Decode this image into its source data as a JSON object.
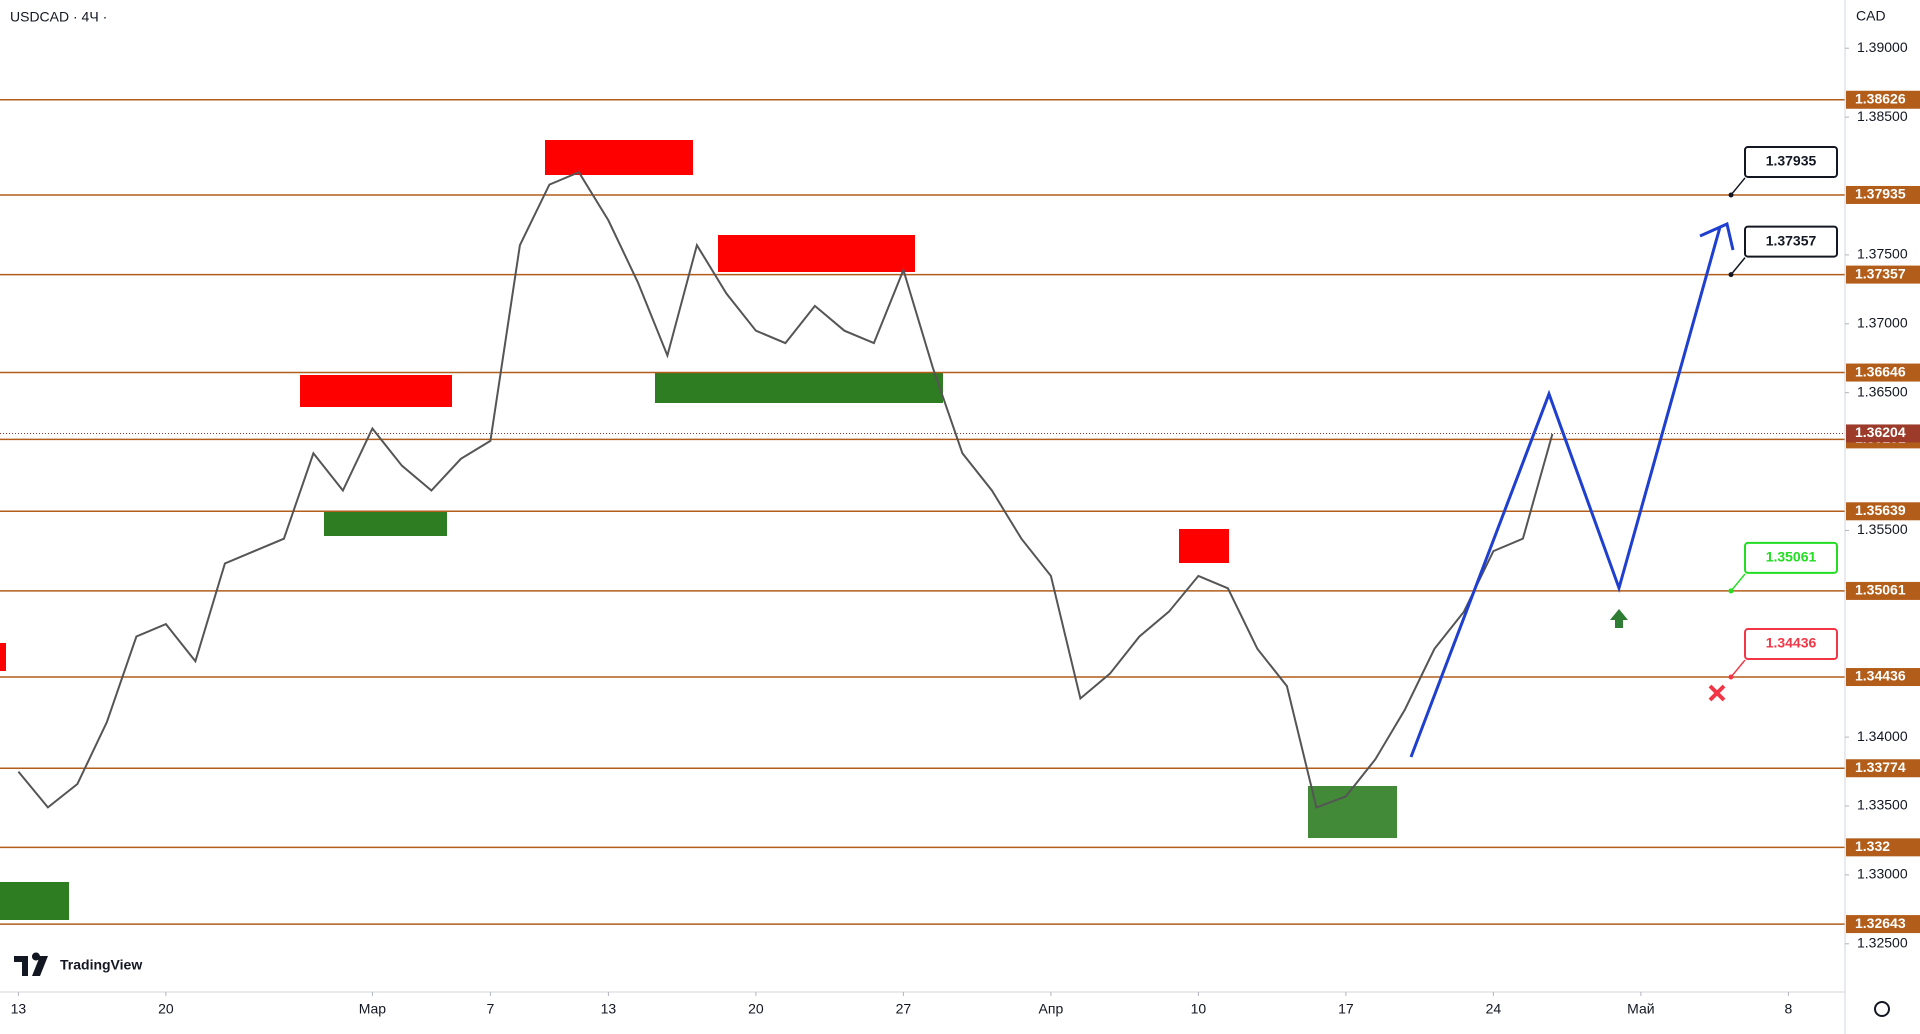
{
  "chart_data": {
    "type": "line",
    "title": "USDCAD · 4Ч ·",
    "currency": "CAD",
    "brand": "TradingView",
    "categories": [
      "13",
      null,
      null,
      null,
      null,
      "20",
      null,
      null,
      null,
      null,
      null,
      null,
      "Мар",
      null,
      null,
      null,
      "7",
      null,
      null,
      null,
      "13",
      null,
      null,
      null,
      null,
      "20",
      null,
      null,
      null,
      null,
      "27",
      null,
      null,
      null,
      null,
      "Апр",
      null,
      null,
      null,
      null,
      "10",
      null,
      null,
      null,
      null,
      "17",
      null,
      null,
      null,
      null,
      "24",
      null,
      null,
      null,
      null,
      "Май",
      null,
      null,
      null,
      null,
      "8",
      null
    ],
    "values": [
      1.3375,
      1.3349,
      1.3366,
      1.3411,
      1.3473,
      1.3482,
      1.3455,
      1.3526,
      1.3535,
      1.3544,
      1.3606,
      1.3579,
      1.3624,
      1.3597,
      1.3579,
      1.3602,
      1.3615,
      1.3757,
      1.3801,
      1.381,
      1.3775,
      1.373,
      1.3677,
      1.3757,
      1.3722,
      1.3695,
      1.3686,
      1.3713,
      1.3695,
      1.3686,
      1.3739,
      1.3668,
      1.3606,
      1.3579,
      1.3544,
      1.3517,
      1.3428,
      1.3446,
      1.3473,
      1.3491,
      1.3517,
      1.3508,
      1.3464,
      1.3437,
      1.3349,
      1.3357,
      1.3384,
      1.342,
      1.3464,
      1.3491,
      1.3535,
      1.3544,
      1.362,
      null,
      null,
      null,
      null,
      null,
      null,
      null,
      null,
      null
    ],
    "color": "#555555",
    "ylim": [
      1.3215,
      1.3935
    ],
    "yticks": [
      {
        "value": 1.39,
        "label": "1.39000"
      },
      {
        "value": 1.385,
        "label": "1.38500"
      },
      {
        "value": 1.375,
        "label": "1.37500"
      },
      {
        "value": 1.37,
        "label": "1.37000"
      },
      {
        "value": 1.365,
        "label": "1.36500"
      },
      {
        "value": 1.355,
        "label": "1.35500"
      },
      {
        "value": 1.34,
        "label": "1.34000"
      },
      {
        "value": 1.335,
        "label": "1.33500"
      },
      {
        "value": 1.33,
        "label": "1.33000"
      },
      {
        "value": 1.325,
        "label": "1.32500"
      }
    ],
    "levels": [
      1.38626,
      1.37935,
      1.37357,
      1.36646,
      1.36161,
      1.35639,
      1.35061,
      1.34436,
      1.33774,
      1.332,
      1.32643
    ],
    "level_color": "#b25d1a",
    "last_price": 1.36204,
    "last_price_color": "#9c3b2a",
    "targets": [
      {
        "value": 1.37935,
        "color": "#131722"
      },
      {
        "value": 1.37357,
        "color": "#131722"
      },
      {
        "value": 1.35061,
        "color": "#22dd22"
      },
      {
        "value": 1.34436,
        "color": "#f23645"
      }
    ]
  }
}
